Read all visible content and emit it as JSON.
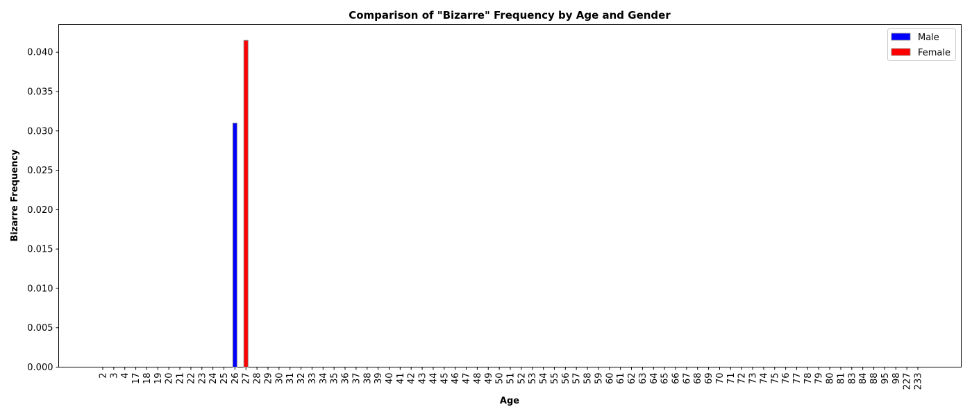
{
  "chart_data": {
    "type": "bar",
    "title": "Comparison of \"Bizarre\" Frequency by Age and Gender",
    "xlabel": "Age",
    "ylabel": "Bizarre Frequency",
    "categories": [
      "2",
      "3",
      "4",
      "17",
      "18",
      "19",
      "20",
      "21",
      "22",
      "23",
      "24",
      "25",
      "26",
      "27",
      "28",
      "29",
      "30",
      "31",
      "32",
      "33",
      "34",
      "35",
      "36",
      "37",
      "38",
      "39",
      "40",
      "41",
      "42",
      "43",
      "44",
      "45",
      "46",
      "47",
      "48",
      "49",
      "50",
      "51",
      "52",
      "53",
      "54",
      "55",
      "56",
      "57",
      "58",
      "59",
      "60",
      "61",
      "62",
      "63",
      "64",
      "65",
      "66",
      "67",
      "68",
      "69",
      "70",
      "71",
      "72",
      "73",
      "74",
      "75",
      "76",
      "77",
      "78",
      "79",
      "80",
      "81",
      "83",
      "84",
      "88",
      "95",
      "98",
      "227",
      "233"
    ],
    "series": [
      {
        "name": "Male",
        "color": "#0000ff",
        "values": {
          "26": 0.031
        }
      },
      {
        "name": "Female",
        "color": "#ff0000",
        "values": {
          "27": 0.0415
        }
      }
    ],
    "ylim": [
      0,
      0.0435
    ],
    "yticks": [
      "0.000",
      "0.005",
      "0.010",
      "0.015",
      "0.020",
      "0.025",
      "0.030",
      "0.035",
      "0.040"
    ],
    "grid": false,
    "legend_position": "top-right"
  }
}
